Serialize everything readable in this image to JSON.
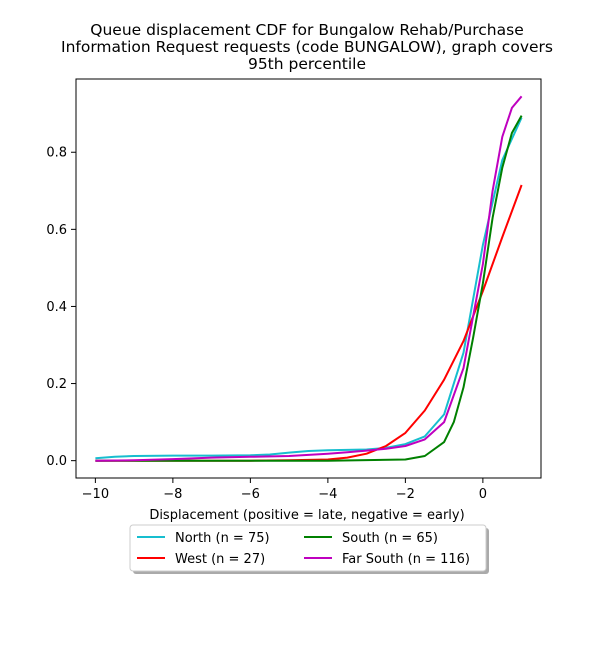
{
  "chart_data": {
    "type": "line",
    "title_lines": [
      "Queue displacement CDF for Bungalow Rehab/Purchase",
      "Information Request  requests (code BUNGALOW), graph covers",
      "95th percentile"
    ],
    "xlabel": "Displacement (positive = late, negative = early)",
    "ylabel": "",
    "xlim": [
      -10.5,
      1.5
    ],
    "ylim": [
      -0.045,
      0.99
    ],
    "xticks": [
      -10,
      -8,
      -6,
      -4,
      -2,
      0
    ],
    "xtick_labels": [
      "−10",
      "−8",
      "−6",
      "−4",
      "−2",
      "0"
    ],
    "yticks": [
      0.0,
      0.2,
      0.4,
      0.6,
      0.8
    ],
    "ytick_labels": [
      "0.0",
      "0.2",
      "0.4",
      "0.6",
      "0.8"
    ],
    "grid": false,
    "legend_position": "below-center",
    "series": [
      {
        "name": "North (n = 75)",
        "color": "#17becf",
        "x": [
          -10,
          -9.5,
          -9,
          -8,
          -7,
          -6,
          -5.5,
          -5,
          -4.5,
          -4,
          -3.5,
          -3,
          -2.5,
          -2,
          -1.5,
          -1,
          -0.5,
          0,
          0.5,
          1
        ],
        "y": [
          0.006,
          0.01,
          0.012,
          0.013,
          0.013,
          0.014,
          0.016,
          0.021,
          0.025,
          0.027,
          0.028,
          0.029,
          0.033,
          0.043,
          0.063,
          0.12,
          0.28,
          0.56,
          0.78,
          0.89
        ]
      },
      {
        "name": "West (n = 27)",
        "color": "#ff0000",
        "x": [
          -10,
          -8,
          -6,
          -5,
          -4,
          -3.5,
          -3,
          -2.5,
          -2,
          -1.5,
          -1,
          -0.5,
          0,
          0.5,
          1
        ],
        "y": [
          0.0,
          0.0,
          0.0,
          0.001,
          0.003,
          0.008,
          0.018,
          0.038,
          0.072,
          0.13,
          0.21,
          0.31,
          0.44,
          0.58,
          0.715
        ]
      },
      {
        "name": "South (n = 65)",
        "color": "#008000",
        "x": [
          -10,
          -8,
          -6,
          -4,
          -2,
          -1.5,
          -1,
          -0.75,
          -0.5,
          -0.25,
          0,
          0.25,
          0.5,
          0.75,
          1
        ],
        "y": [
          0.0,
          0.0,
          0.0,
          0.0,
          0.003,
          0.012,
          0.048,
          0.1,
          0.19,
          0.32,
          0.46,
          0.63,
          0.76,
          0.85,
          0.895
        ]
      },
      {
        "name": "Far South (n = 116)",
        "color": "#bf00bf",
        "x": [
          -10,
          -9,
          -8,
          -7,
          -6,
          -5,
          -4.5,
          -4,
          -3.5,
          -3,
          -2.5,
          -2,
          -1.5,
          -1,
          -0.5,
          0,
          0.25,
          0.5,
          0.75,
          1
        ],
        "y": [
          0.0,
          0.001,
          0.004,
          0.008,
          0.01,
          0.012,
          0.015,
          0.018,
          0.022,
          0.026,
          0.031,
          0.038,
          0.055,
          0.1,
          0.24,
          0.51,
          0.7,
          0.84,
          0.915,
          0.945
        ]
      }
    ]
  }
}
